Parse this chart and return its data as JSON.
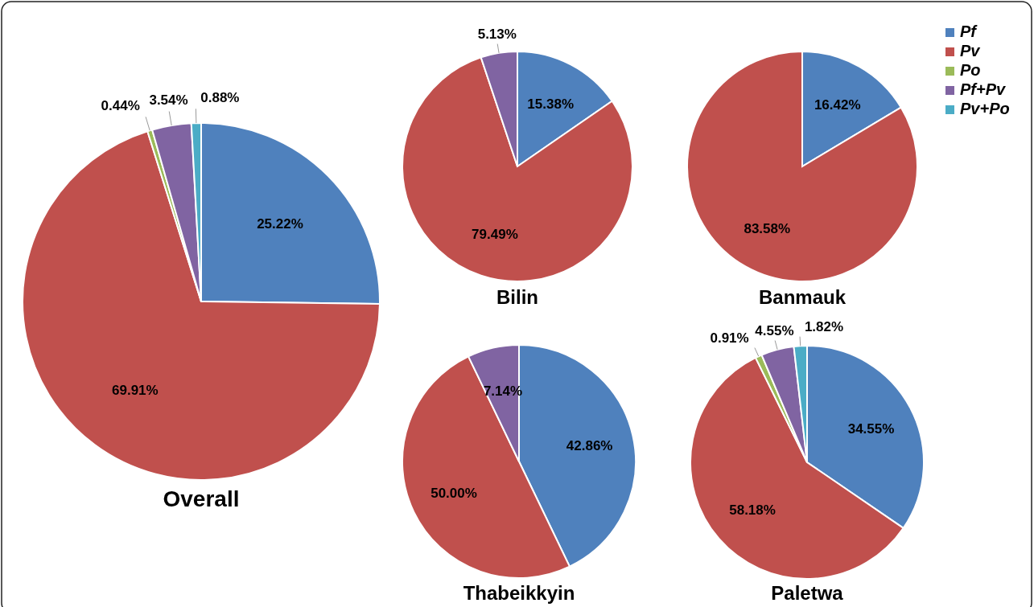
{
  "chart_data": [
    {
      "type": "pie",
      "title": "Overall",
      "categories": [
        "Pf",
        "Pv",
        "Po",
        "Pf+Pv",
        "Pv+Po"
      ],
      "values": [
        25.22,
        69.91,
        0.44,
        3.54,
        0.88
      ],
      "colors": [
        "#4f81bd",
        "#c0504d",
        "#9bbb59",
        "#8064a2",
        "#4bacc6"
      ],
      "value_labels": [
        "25.22%",
        "69.91%",
        "0.44%",
        "3.54%",
        "0.88%"
      ],
      "legend": "top right"
    },
    {
      "type": "pie",
      "title": "Bilin",
      "categories": [
        null,
        null,
        null
      ],
      "values": [
        15.38,
        79.49,
        5.13
      ],
      "colors": [
        "#4f81bd",
        "#c0504d",
        "#8064a2"
      ],
      "value_labels": [
        "15.38%",
        "79.49%",
        "5.13%"
      ]
    },
    {
      "type": "pie",
      "title": "Banmauk",
      "categories": [
        null,
        null
      ],
      "values": [
        16.42,
        83.58
      ],
      "colors": [
        "#4f81bd",
        "#c0504d"
      ],
      "value_labels": [
        "16.42%",
        "83.58%"
      ]
    },
    {
      "type": "pie",
      "title": "Thabeikkyin",
      "categories": [
        null,
        null,
        null
      ],
      "values": [
        42.86,
        50.0,
        7.14
      ],
      "colors": [
        "#4f81bd",
        "#c0504d",
        "#8064a2"
      ],
      "value_labels": [
        "42.86%",
        "50.00%",
        "7.14%"
      ]
    },
    {
      "type": "pie",
      "title": "Paletwa",
      "categories": [
        null,
        null,
        null,
        null,
        null
      ],
      "values": [
        34.55,
        58.18,
        0.91,
        4.55,
        1.82
      ],
      "colors": [
        "#4f81bd",
        "#c0504d",
        "#9bbb59",
        "#8064a2",
        "#4bacc6"
      ],
      "value_labels": [
        "34.55%",
        "58.18%",
        "0.91%",
        "4.55%",
        "1.82%"
      ]
    }
  ]
}
